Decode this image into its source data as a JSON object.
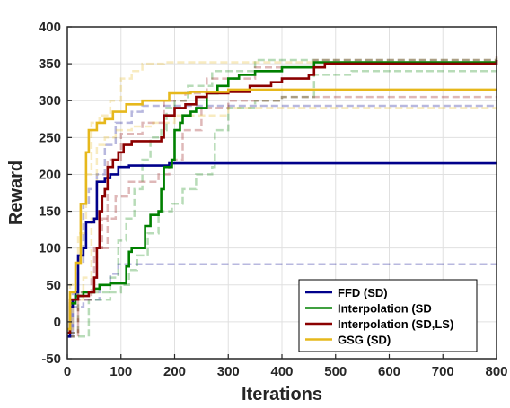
{
  "chart_data": {
    "type": "line",
    "xlabel": "Iterations",
    "ylabel": "Reward",
    "xlim": [
      0,
      800
    ],
    "ylim": [
      -50,
      400
    ],
    "x_ticks": [
      0,
      100,
      200,
      300,
      400,
      500,
      600,
      700,
      800
    ],
    "y_ticks": [
      -50,
      0,
      50,
      100,
      150,
      200,
      250,
      300,
      350,
      400
    ],
    "grid": true,
    "legend_position": "bottom-right",
    "series": [
      {
        "name": "FFD (SD)",
        "color": "#00008B",
        "mean": [
          [
            0,
            -20
          ],
          [
            5,
            20
          ],
          [
            10,
            30
          ],
          [
            15,
            40
          ],
          [
            20,
            90
          ],
          [
            30,
            100
          ],
          [
            35,
            135
          ],
          [
            50,
            140
          ],
          [
            55,
            190
          ],
          [
            70,
            195
          ],
          [
            80,
            200
          ],
          [
            90,
            200
          ],
          [
            95,
            210
          ],
          [
            110,
            210
          ],
          [
            115,
            212
          ],
          [
            190,
            215
          ],
          [
            800,
            215
          ]
        ],
        "upper": [
          [
            0,
            -15
          ],
          [
            10,
            40
          ],
          [
            20,
            80
          ],
          [
            30,
            160
          ],
          [
            40,
            180
          ],
          [
            55,
            200
          ],
          [
            70,
            240
          ],
          [
            90,
            270
          ],
          [
            120,
            285
          ],
          [
            140,
            293
          ],
          [
            800,
            293
          ]
        ],
        "lower": [
          [
            0,
            -20
          ],
          [
            10,
            20
          ],
          [
            30,
            30
          ],
          [
            60,
            50
          ],
          [
            80,
            65
          ],
          [
            95,
            78
          ],
          [
            800,
            78
          ]
        ]
      },
      {
        "name": "Interpolation (SD",
        "color": "#008000",
        "mean": [
          [
            0,
            -15
          ],
          [
            5,
            25
          ],
          [
            15,
            35
          ],
          [
            30,
            40
          ],
          [
            50,
            45
          ],
          [
            60,
            50
          ],
          [
            80,
            52
          ],
          [
            110,
            75
          ],
          [
            115,
            95
          ],
          [
            120,
            100
          ],
          [
            140,
            100
          ],
          [
            145,
            130
          ],
          [
            155,
            145
          ],
          [
            170,
            150
          ],
          [
            175,
            180
          ],
          [
            180,
            210
          ],
          [
            195,
            220
          ],
          [
            200,
            260
          ],
          [
            210,
            270
          ],
          [
            215,
            280
          ],
          [
            230,
            285
          ],
          [
            240,
            290
          ],
          [
            260,
            310
          ],
          [
            280,
            320
          ],
          [
            300,
            330
          ],
          [
            320,
            335
          ],
          [
            350,
            340
          ],
          [
            400,
            345
          ],
          [
            440,
            345
          ],
          [
            460,
            352
          ],
          [
            500,
            352
          ],
          [
            800,
            352
          ]
        ],
        "upper": [
          [
            0,
            -15
          ],
          [
            20,
            40
          ],
          [
            80,
            60
          ],
          [
            95,
            110
          ],
          [
            110,
            140
          ],
          [
            125,
            180
          ],
          [
            140,
            220
          ],
          [
            155,
            250
          ],
          [
            175,
            260
          ],
          [
            185,
            290
          ],
          [
            200,
            300
          ],
          [
            225,
            320
          ],
          [
            270,
            340
          ],
          [
            350,
            355
          ],
          [
            800,
            358
          ]
        ],
        "lower": [
          [
            0,
            -20
          ],
          [
            40,
            30
          ],
          [
            80,
            40
          ],
          [
            100,
            50
          ],
          [
            115,
            70
          ],
          [
            130,
            90
          ],
          [
            150,
            120
          ],
          [
            170,
            150
          ],
          [
            195,
            160
          ],
          [
            215,
            180
          ],
          [
            240,
            200
          ],
          [
            270,
            210
          ],
          [
            275,
            260
          ],
          [
            300,
            290
          ],
          [
            350,
            300
          ],
          [
            400,
            305
          ],
          [
            460,
            335
          ],
          [
            530,
            340
          ],
          [
            800,
            340
          ]
        ]
      },
      {
        "name": "Interpolation (SD,LS)",
        "color": "#8B0000",
        "mean": [
          [
            0,
            -15
          ],
          [
            5,
            30
          ],
          [
            20,
            35
          ],
          [
            40,
            40
          ],
          [
            50,
            60
          ],
          [
            55,
            100
          ],
          [
            60,
            150
          ],
          [
            65,
            170
          ],
          [
            70,
            180
          ],
          [
            75,
            210
          ],
          [
            85,
            220
          ],
          [
            95,
            230
          ],
          [
            105,
            240
          ],
          [
            120,
            245
          ],
          [
            140,
            245
          ],
          [
            175,
            250
          ],
          [
            180,
            280
          ],
          [
            200,
            290
          ],
          [
            220,
            295
          ],
          [
            240,
            305
          ],
          [
            260,
            310
          ],
          [
            300,
            312
          ],
          [
            340,
            320
          ],
          [
            380,
            325
          ],
          [
            400,
            330
          ],
          [
            450,
            335
          ],
          [
            460,
            345
          ],
          [
            480,
            350
          ],
          [
            800,
            355
          ]
        ],
        "upper": [
          [
            0,
            -15
          ],
          [
            20,
            40
          ],
          [
            50,
            100
          ],
          [
            75,
            220
          ],
          [
            100,
            255
          ],
          [
            140,
            270
          ],
          [
            180,
            300
          ],
          [
            220,
            310
          ],
          [
            260,
            330
          ],
          [
            350,
            345
          ],
          [
            460,
            355
          ],
          [
            800,
            360
          ]
        ],
        "lower": [
          [
            0,
            -20
          ],
          [
            20,
            30
          ],
          [
            45,
            60
          ],
          [
            55,
            100
          ],
          [
            65,
            140
          ],
          [
            90,
            170
          ],
          [
            115,
            190
          ],
          [
            140,
            190
          ],
          [
            170,
            200
          ],
          [
            190,
            220
          ],
          [
            215,
            260
          ],
          [
            250,
            290
          ],
          [
            300,
            300
          ],
          [
            400,
            305
          ],
          [
            800,
            305
          ]
        ]
      },
      {
        "name": "GSG (SD)",
        "color": "#E6B81C",
        "mean": [
          [
            0,
            -10
          ],
          [
            5,
            40
          ],
          [
            15,
            80
          ],
          [
            25,
            160
          ],
          [
            35,
            230
          ],
          [
            40,
            260
          ],
          [
            55,
            270
          ],
          [
            70,
            275
          ],
          [
            85,
            285
          ],
          [
            110,
            295
          ],
          [
            140,
            300
          ],
          [
            170,
            300
          ],
          [
            190,
            310
          ],
          [
            230,
            312
          ],
          [
            300,
            315
          ],
          [
            800,
            315
          ]
        ],
        "upper": [
          [
            0,
            -10
          ],
          [
            5,
            50
          ],
          [
            20,
            120
          ],
          [
            35,
            200
          ],
          [
            45,
            270
          ],
          [
            60,
            280
          ],
          [
            80,
            300
          ],
          [
            100,
            330
          ],
          [
            120,
            340
          ],
          [
            140,
            350
          ],
          [
            180,
            352
          ],
          [
            800,
            352
          ]
        ],
        "lower": [
          [
            0,
            -10
          ],
          [
            10,
            30
          ],
          [
            30,
            60
          ],
          [
            45,
            140
          ],
          [
            55,
            240
          ],
          [
            70,
            250
          ],
          [
            90,
            260
          ],
          [
            120,
            265
          ],
          [
            160,
            270
          ],
          [
            200,
            280
          ],
          [
            300,
            290
          ],
          [
            800,
            290
          ]
        ]
      }
    ]
  }
}
